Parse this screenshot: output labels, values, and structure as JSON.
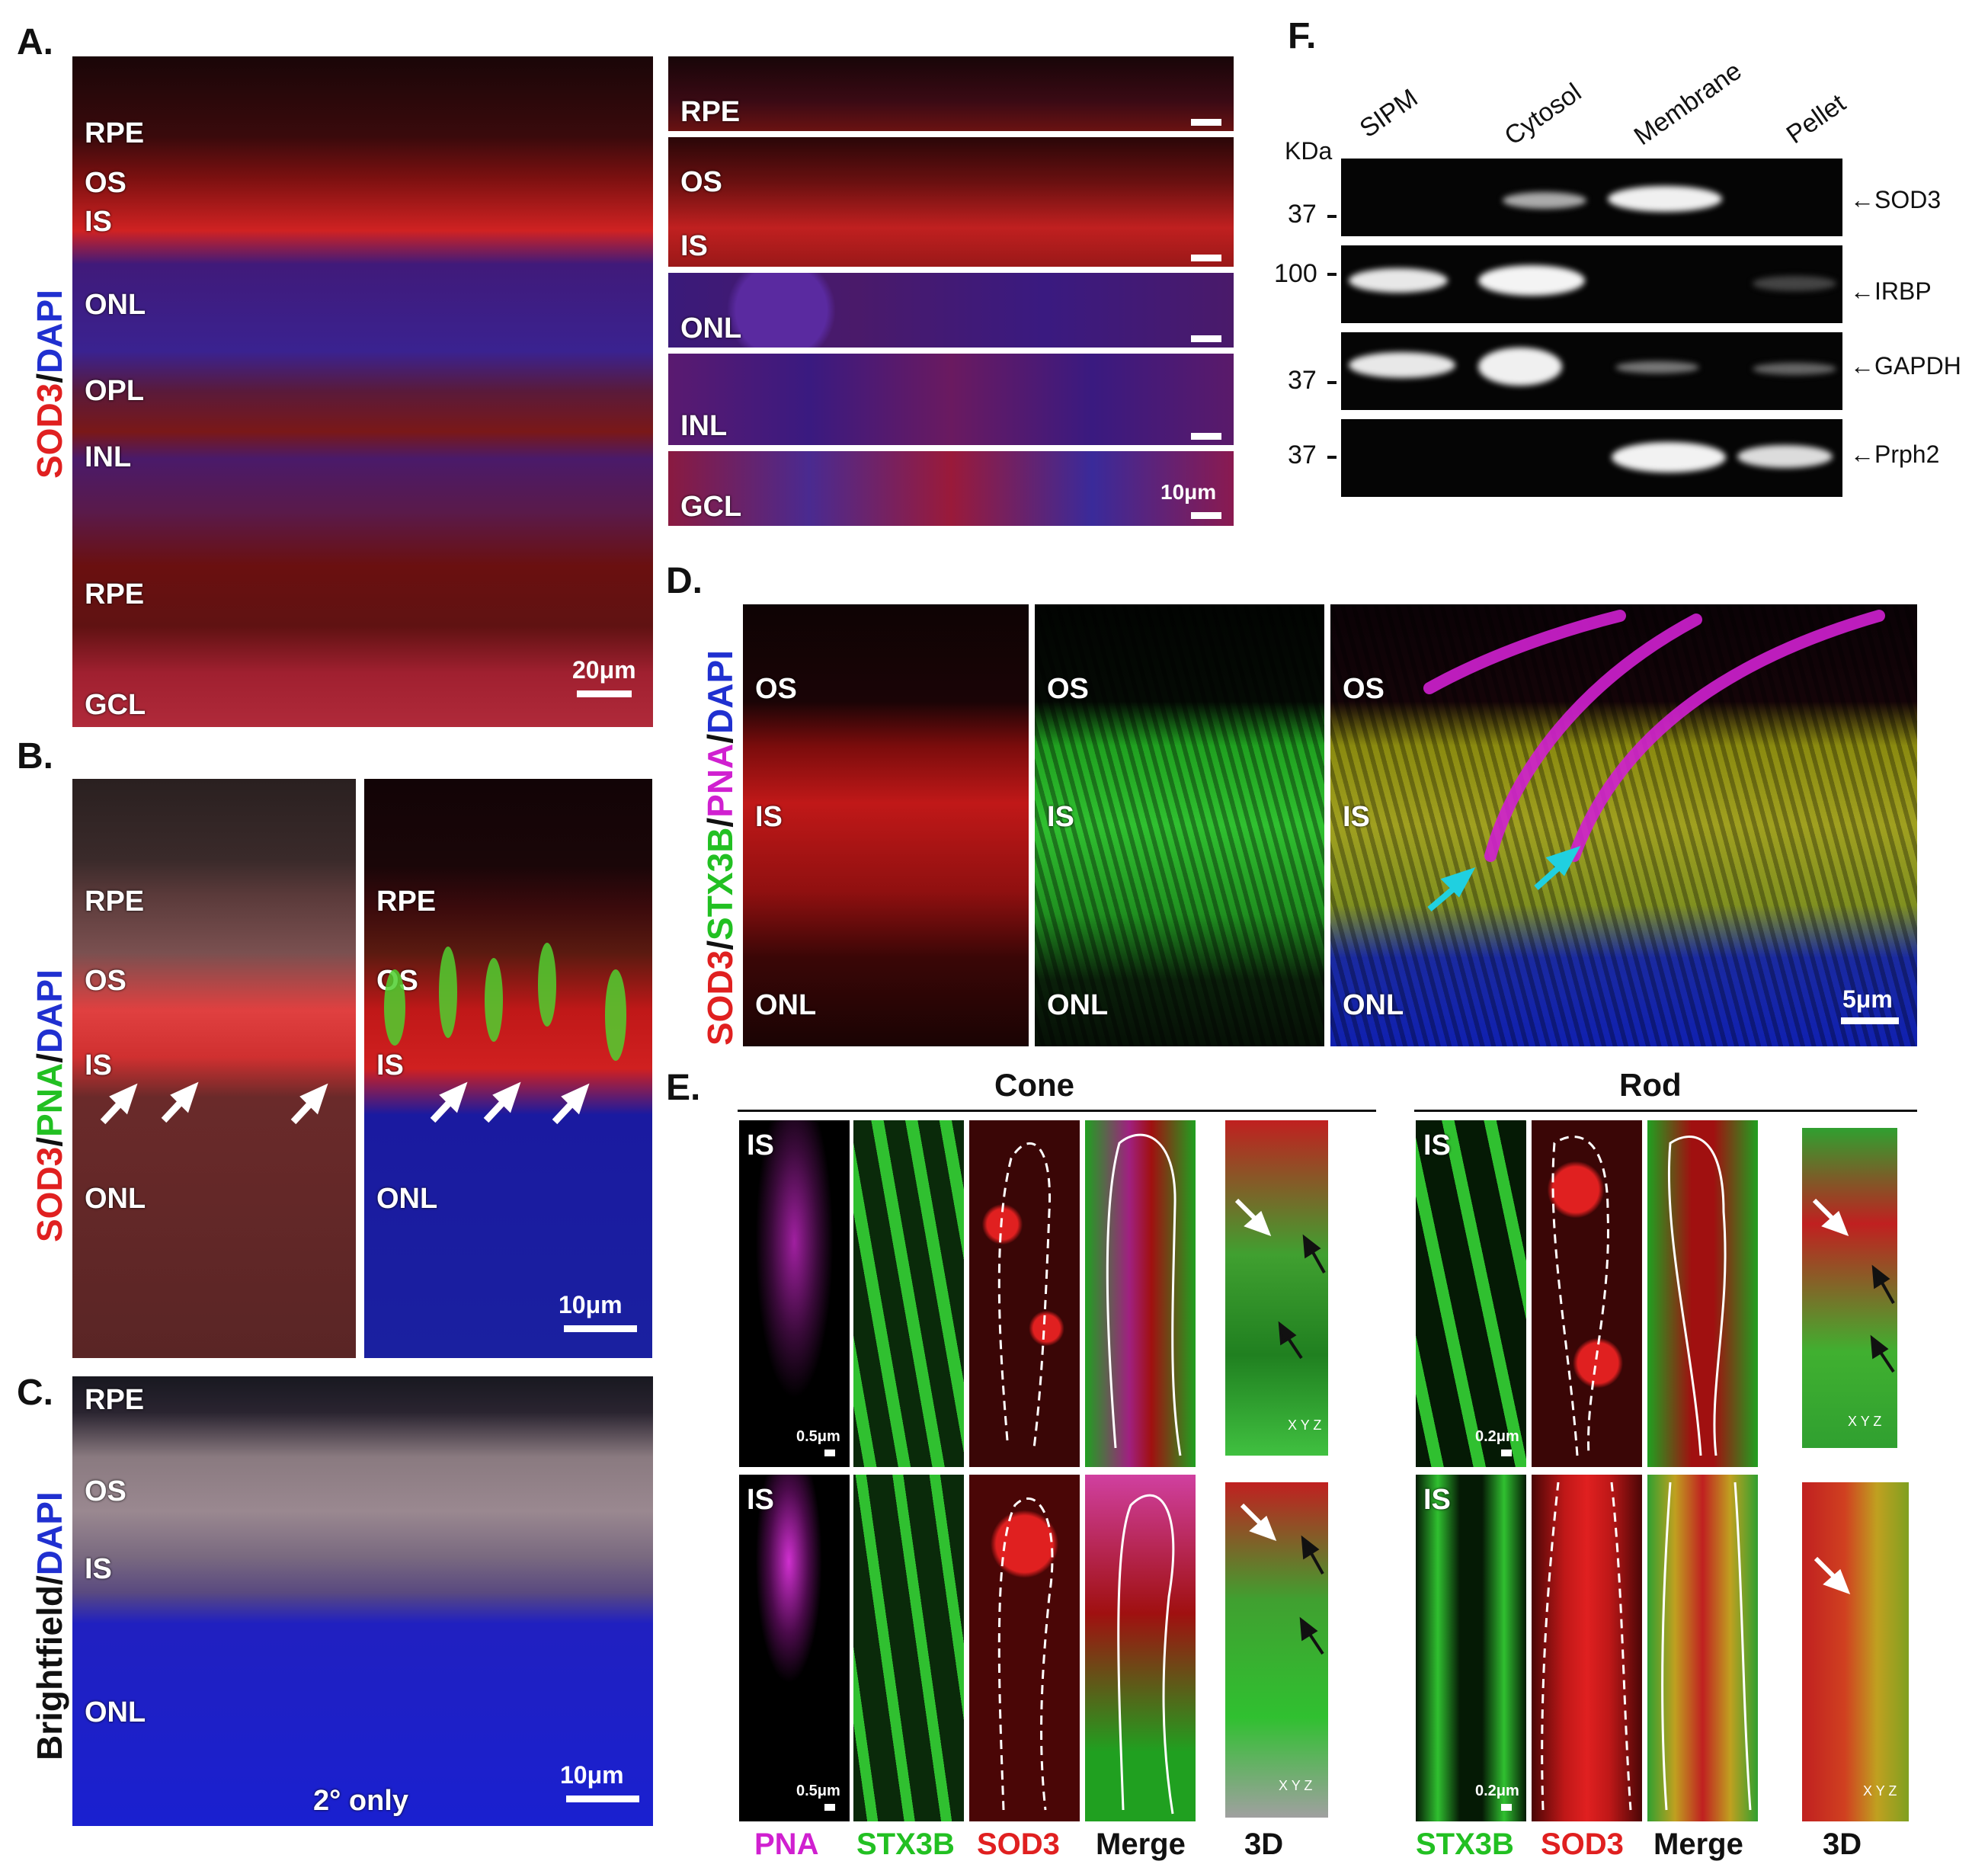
{
  "panels": {
    "A": {
      "letter": "A.",
      "label_red": "SOD3",
      "label_sep": "/",
      "label_blue": "DAPI",
      "main_layers": [
        "RPE",
        "OS",
        "IS",
        "ONL",
        "OPL",
        "INL",
        "RPE",
        "GCL"
      ],
      "main_scale": "20μm",
      "inset_layers": [
        [
          "RPE"
        ],
        [
          "OS",
          "IS"
        ],
        [
          "ONL"
        ],
        [
          "INL"
        ],
        [
          "GCL"
        ]
      ],
      "inset_scale": "10μm"
    },
    "B": {
      "letter": "B.",
      "label_red": "SOD3",
      "label_green": "PNA",
      "label_blue": "DAPI",
      "sep": "/",
      "layers": [
        "RPE",
        "OS",
        "IS",
        "ONL"
      ],
      "scale": "10μm"
    },
    "C": {
      "letter": "C.",
      "label_dark": "Brightfield",
      "label_blue": "DAPI",
      "sep": "/",
      "layers": [
        "RPE",
        "OS",
        "IS",
        "ONL"
      ],
      "note": "2° only",
      "scale": "10μm"
    },
    "D": {
      "letter": "D.",
      "label_red": "SOD3",
      "label_green": "STX3B",
      "label_magenta": "PNA",
      "label_blue": "DAPI",
      "sep": "/",
      "layers": [
        "OS",
        "IS",
        "ONL"
      ],
      "scale": "5μm"
    },
    "E": {
      "letter": "E.",
      "cone_title": "Cone",
      "rod_title": "Rod",
      "is_label": "IS",
      "cone_scale": "0.5μm",
      "rod_scale": "0.2μm",
      "axes": {
        "x": "X",
        "y": "Y",
        "z": "Z"
      },
      "cone_columns": [
        "PNA",
        "STX3B",
        "SOD3",
        "Merge",
        "3D"
      ],
      "rod_columns": [
        "STX3B",
        "SOD3",
        "Merge",
        "3D"
      ]
    },
    "F": {
      "letter": "F.",
      "kda": "KDa",
      "columns": [
        "SIPM",
        "Cytosol",
        "Membrane",
        "Pellet"
      ],
      "rows": [
        {
          "mw": "37",
          "protein": "SOD3"
        },
        {
          "mw": "100",
          "protein": "IRBP"
        },
        {
          "mw": "37",
          "protein": "GAPDH"
        },
        {
          "mw": "37",
          "protein": "Prph2"
        }
      ],
      "arrow": "←"
    }
  }
}
